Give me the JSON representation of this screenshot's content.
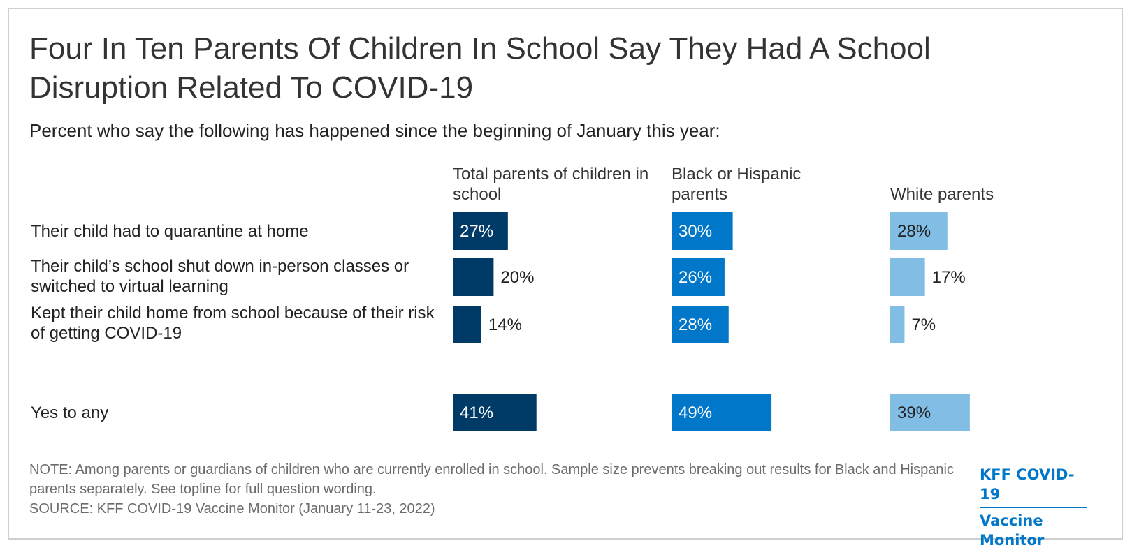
{
  "header": {
    "title": "Four In Ten Parents Of Children In School Say They Had A School Disruption Related To COVID-19",
    "subtitle": "Percent who say the following has happened since the beginning of January this year:"
  },
  "footer": {
    "note": "NOTE: Among parents or guardians of children who are currently enrolled in school. Sample size prevents breaking out results for Black and Hispanic parents separately. See topline for full question wording.",
    "source": "SOURCE: KFF COVID-19 Vaccine Monitor (January 11-23, 2022)",
    "brand_line1": "KFF COVID-19",
    "brand_line2": "Vaccine Monitor"
  },
  "colors": {
    "total": "#003a66",
    "black_hispanic": "#0077c8",
    "white": "#82bde6"
  },
  "chart_data": {
    "type": "bar",
    "orientation": "horizontal",
    "title": "Four In Ten Parents Of Children In School Say They Had A School Disruption Related To COVID-19",
    "subtitle": "Percent who say the following has happened since the beginning of January this year:",
    "unit": "%",
    "categories": [
      "Their child had to quarantine at home",
      "Their child’s school shut down in-person classes or switched to virtual learning",
      "Kept their child home from school because of their risk of getting COVID-19",
      "Yes to any"
    ],
    "series": [
      {
        "name": "Total parents of children in school",
        "values": [
          27,
          20,
          14,
          41
        ],
        "color": "#003a66"
      },
      {
        "name": "Black or Hispanic parents",
        "values": [
          30,
          26,
          28,
          49
        ],
        "color": "#0077c8"
      },
      {
        "name": "White parents",
        "values": [
          28,
          17,
          7,
          39
        ],
        "color": "#82bde6"
      }
    ],
    "value_labels": [
      [
        "27%",
        "20%",
        "14%",
        "41%"
      ],
      [
        "30%",
        "26%",
        "28%",
        "49%"
      ],
      [
        "28%",
        "17%",
        "7%",
        "39%"
      ]
    ],
    "grid": false,
    "legend": "column-headers"
  }
}
